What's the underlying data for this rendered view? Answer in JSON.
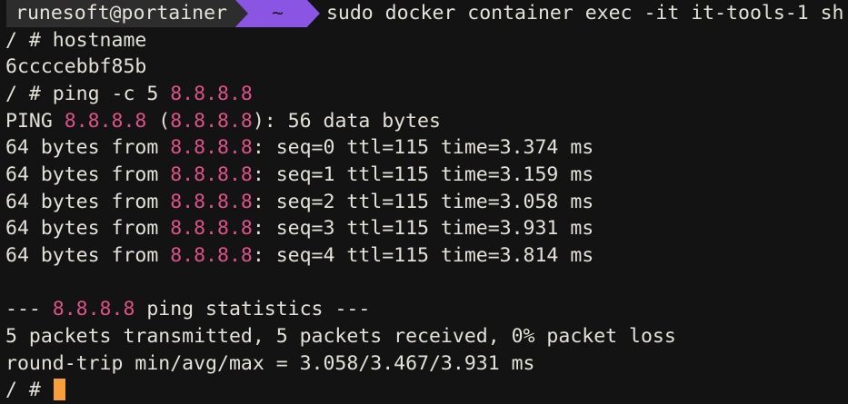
{
  "colors": {
    "bg": "#131313",
    "fg": "#e4e2d8",
    "ip": "#de5289",
    "seg": "#2d2d2d",
    "purple": "#8a55e2",
    "dirfg": "#1e1e1e",
    "cursor": "#f7a03b"
  },
  "terminal": {
    "prompt": {
      "user_host": "runesoft@portainer",
      "directory": "~",
      "command": "sudo docker container exec -it it-tools-1 sh"
    },
    "lines": [
      {
        "parts": [
          {
            "role": "fg",
            "text": "/ # hostname"
          }
        ]
      },
      {
        "parts": [
          {
            "role": "fg",
            "text": "6ccccebbf85b"
          }
        ]
      },
      {
        "parts": [
          {
            "role": "fg",
            "text": "/ # ping -c 5 "
          },
          {
            "role": "ip",
            "text": "8.8.8.8"
          }
        ]
      },
      {
        "parts": [
          {
            "role": "fg",
            "text": "PING "
          },
          {
            "role": "ip",
            "text": "8.8.8.8"
          },
          {
            "role": "fg",
            "text": " ("
          },
          {
            "role": "ip",
            "text": "8.8.8.8"
          },
          {
            "role": "fg",
            "text": "): 56 data bytes"
          }
        ]
      },
      {
        "parts": [
          {
            "role": "fg",
            "text": "64 bytes from "
          },
          {
            "role": "ip",
            "text": "8.8.8.8"
          },
          {
            "role": "fg",
            "text": ": seq=0 ttl=115 time=3.374 ms"
          }
        ]
      },
      {
        "parts": [
          {
            "role": "fg",
            "text": "64 bytes from "
          },
          {
            "role": "ip",
            "text": "8.8.8.8"
          },
          {
            "role": "fg",
            "text": ": seq=1 ttl=115 time=3.159 ms"
          }
        ]
      },
      {
        "parts": [
          {
            "role": "fg",
            "text": "64 bytes from "
          },
          {
            "role": "ip",
            "text": "8.8.8.8"
          },
          {
            "role": "fg",
            "text": ": seq=2 ttl=115 time=3.058 ms"
          }
        ]
      },
      {
        "parts": [
          {
            "role": "fg",
            "text": "64 bytes from "
          },
          {
            "role": "ip",
            "text": "8.8.8.8"
          },
          {
            "role": "fg",
            "text": ": seq=3 ttl=115 time=3.931 ms"
          }
        ]
      },
      {
        "parts": [
          {
            "role": "fg",
            "text": "64 bytes from "
          },
          {
            "role": "ip",
            "text": "8.8.8.8"
          },
          {
            "role": "fg",
            "text": ": seq=4 ttl=115 time=3.814 ms"
          }
        ]
      },
      {
        "parts": []
      },
      {
        "parts": [
          {
            "role": "fg",
            "text": "--- "
          },
          {
            "role": "ip",
            "text": "8.8.8.8"
          },
          {
            "role": "fg",
            "text": " ping statistics ---"
          }
        ]
      },
      {
        "parts": [
          {
            "role": "fg",
            "text": "5 packets transmitted, 5 packets received, 0% packet loss"
          }
        ]
      },
      {
        "parts": [
          {
            "role": "fg",
            "text": "round-trip min/avg/max = 3.058/3.467/3.931 ms"
          }
        ]
      },
      {
        "parts": [
          {
            "role": "fg",
            "text": "/ # "
          }
        ],
        "cursor": true
      }
    ]
  }
}
